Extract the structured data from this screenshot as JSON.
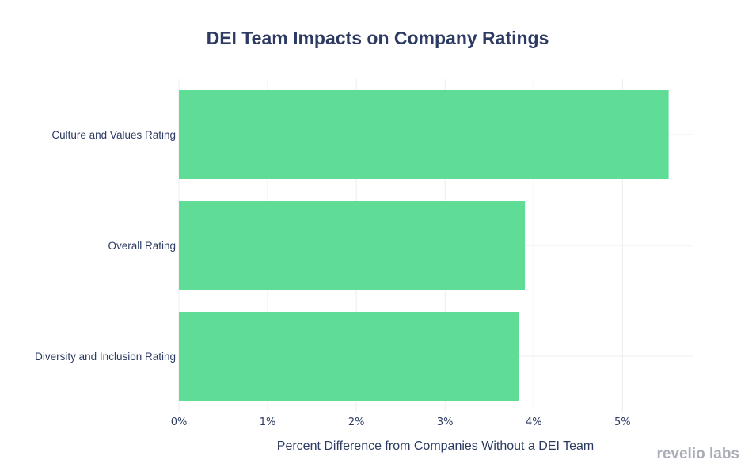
{
  "chart_data": {
    "type": "bar",
    "orientation": "horizontal",
    "title": "DEI Team Impacts on Company Ratings",
    "xlabel": "Percent Difference from Companies Without a DEI Team",
    "ylabel": "",
    "categories": [
      "Culture and Values Rating",
      "Overall Rating",
      "Diversity and Inclusion Rating"
    ],
    "values": [
      5.52,
      3.9,
      3.83
    ],
    "xlim": [
      0,
      5.8
    ],
    "xticks": [
      0,
      1,
      2,
      3,
      4,
      5
    ],
    "xtick_labels": [
      "0%",
      "1%",
      "2%",
      "3%",
      "4%",
      "5%"
    ],
    "grid": true,
    "legend": "none"
  },
  "branding": {
    "logo_text": "revelio labs"
  },
  "colors": {
    "bar": "#5fdc95",
    "title": "#2d3b63",
    "text": "#2d3b63",
    "grid": "#ececec",
    "brand": "#a9adb6"
  }
}
